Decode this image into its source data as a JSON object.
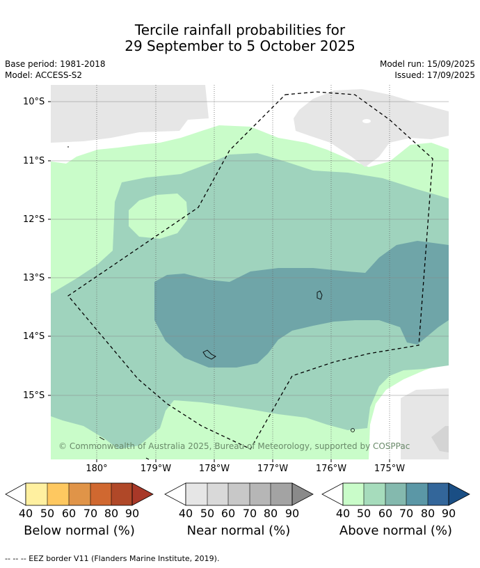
{
  "title": {
    "line1": "Tercile rainfall probabilities for",
    "line2": "29 September to 5 October 2025"
  },
  "meta": {
    "base_period": "Base period: 1981-2018",
    "model": "Model: ACCESS-S2",
    "model_run": "Model run: 15/09/2025",
    "issued": "Issued: 17/09/2025"
  },
  "map": {
    "lat_labels": [
      "10°S",
      "11°S",
      "12°S",
      "13°S",
      "14°S",
      "15°S"
    ],
    "lon_labels": [
      "180°",
      "179°W",
      "178°W",
      "177°W",
      "176°W",
      "175°W"
    ],
    "copyright": "© Commonwealth of Australia 2025, Bureau of Meteorology, supported by COSPPac",
    "colors": {
      "land": "#e6e6e6",
      "above_40": "#c9fcc9",
      "above_50": "#9fd3bd",
      "above_60": "#6fa5a8"
    }
  },
  "colorbars": [
    {
      "label": "Below normal (%)",
      "ticks": [
        "40",
        "50",
        "60",
        "70",
        "80",
        "90"
      ],
      "colors": [
        "#fff0a0",
        "#fec860",
        "#e09448",
        "#d06830",
        "#b04828",
        "#a83828"
      ]
    },
    {
      "label": "Near normal (%)",
      "ticks": [
        "40",
        "50",
        "60",
        "70",
        "80",
        "90"
      ],
      "colors": [
        "#e6e6e6",
        "#d9d9d9",
        "#c8c8c8",
        "#b6b6b6",
        "#a3a3a3",
        "#8a8a8a"
      ]
    },
    {
      "label": "Above normal (%)",
      "ticks": [
        "40",
        "50",
        "60",
        "70",
        "80",
        "90"
      ],
      "colors": [
        "#c9fcc9",
        "#a6dcbc",
        "#84b9ae",
        "#5b97a6",
        "#33669a",
        "#1a4e84"
      ]
    }
  ],
  "footer": "--  --  -- EEZ border V11 (Flanders Marine Institute, 2019)."
}
